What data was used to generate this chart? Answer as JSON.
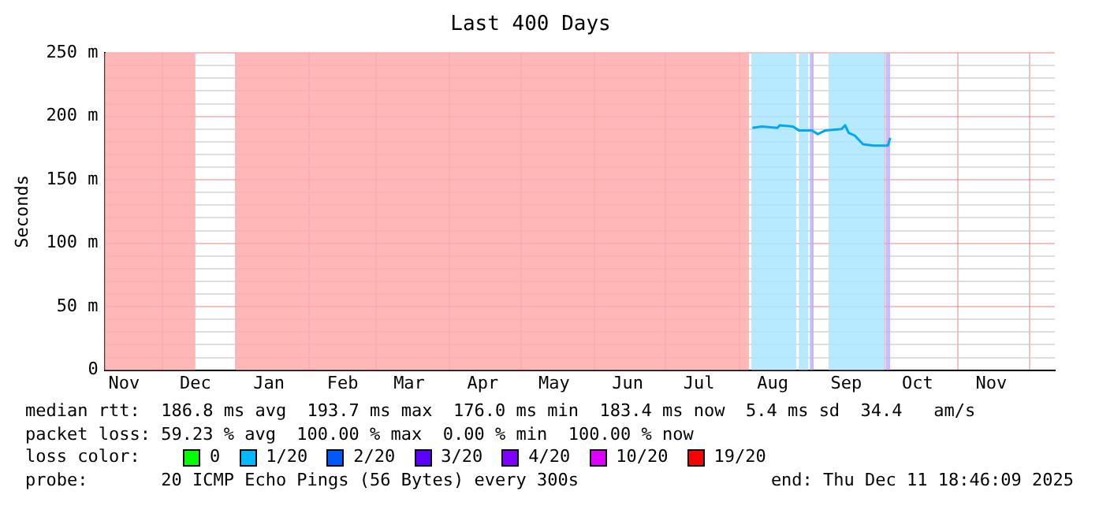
{
  "chart_data": {
    "type": "line",
    "title": "Last 400 Days",
    "ylabel": "Seconds",
    "x": [
      "2025-08-06T12:00",
      "2025-08-10T12:00",
      "2025-08-17",
      "2025-08-18",
      "2025-08-23T12:00",
      "2025-08-26",
      "2025-08-31T12:00",
      "2025-09-03",
      "2025-09-06T06:00",
      "2025-09-13",
      "2025-09-14T12:00",
      "2025-09-16",
      "2025-09-18T12:00",
      "2025-09-22",
      "2025-09-26T12:00",
      "2025-10-02T12:00",
      "2025-10-03T12:00"
    ],
    "series": [
      {
        "color": "#00a8f0",
        "values": [
          191,
          192,
          191,
          193,
          192,
          189,
          189,
          186,
          189,
          190,
          193,
          187,
          185,
          178,
          177,
          177,
          183
        ]
      },
      {
        "name": "0",
        "color": "#00ff00",
        "values": [
          null,
          null,
          null,
          null,
          null,
          null,
          null,
          null,
          null,
          null,
          null,
          null,
          null,
          null,
          null,
          null,
          null
        ]
      },
      {
        "name": "1/20",
        "color": "#00b8ff",
        "values": [
          null,
          null,
          null,
          null,
          null,
          null,
          null,
          null,
          null,
          null,
          null,
          null,
          null,
          null,
          null,
          null,
          null
        ]
      },
      {
        "name": "2/20",
        "color": "#0059ff",
        "values": [
          null,
          null,
          null,
          null,
          null,
          null,
          null,
          null,
          null,
          null,
          null,
          null,
          null,
          null,
          null,
          null,
          null
        ]
      },
      {
        "name": "3/20",
        "color": "#5e00ff",
        "values": [
          null,
          null,
          null,
          null,
          null,
          null,
          null,
          null,
          null,
          null,
          null,
          null,
          null,
          null,
          null,
          null,
          null
        ]
      },
      {
        "name": "4/20",
        "color": "#7e00ff",
        "values": [
          null,
          null,
          null,
          null,
          null,
          null,
          null,
          null,
          null,
          null,
          null,
          null,
          null,
          null,
          null,
          null,
          null
        ]
      },
      {
        "name": "10/20",
        "color": "#dd00ff",
        "values": [
          null,
          null,
          null,
          null,
          null,
          null,
          null,
          null,
          null,
          null,
          null,
          null,
          null,
          null,
          null,
          null,
          null
        ]
      },
      {
        "name": "19/20",
        "color": "#ff0000",
        "values": [
          null,
          null,
          null,
          null,
          null,
          null,
          null,
          null,
          null,
          null,
          null,
          null,
          null,
          null,
          null,
          null,
          null
        ]
      }
    ],
    "legend": "bottom",
    "legend_title": "loss color:",
    "xlim": [
      "2024-11-06T18:46",
      "2025-12-11T18:46"
    ],
    "xticks": [
      {
        "value": "2024-11-15",
        "label": "Nov"
      },
      {
        "value": "2024-12-01",
        "label": null
      },
      {
        "value": "2024-12-15",
        "label": "Dec"
      },
      {
        "value": "2025-01-01",
        "label": null
      },
      {
        "value": "2025-01-15",
        "label": "Jan"
      },
      {
        "value": "2025-02-01",
        "label": null
      },
      {
        "value": "2025-02-15",
        "label": "Feb"
      },
      {
        "value": "2025-03-01",
        "label": null
      },
      {
        "value": "2025-03-15",
        "label": "Mar"
      },
      {
        "value": "2025-04-01",
        "label": null
      },
      {
        "value": "2025-04-15",
        "label": "Apr"
      },
      {
        "value": "2025-05-01",
        "label": null
      },
      {
        "value": "2025-05-15",
        "label": "May"
      },
      {
        "value": "2025-06-01",
        "label": null
      },
      {
        "value": "2025-06-15",
        "label": "Jun"
      },
      {
        "value": "2025-07-01",
        "label": null
      },
      {
        "value": "2025-07-15",
        "label": "Jul"
      },
      {
        "value": "2025-08-01",
        "label": null
      },
      {
        "value": "2025-08-15",
        "label": "Aug"
      },
      {
        "value": "2025-09-01",
        "label": null
      },
      {
        "value": "2025-09-15",
        "label": "Sep"
      },
      {
        "value": "2025-10-01",
        "label": null
      },
      {
        "value": "2025-10-15",
        "label": "Oct"
      },
      {
        "value": "2025-11-01",
        "label": null
      },
      {
        "value": "2025-11-15",
        "label": "Nov"
      },
      {
        "value": "2025-12-01",
        "label": null
      }
    ],
    "ylim": [
      0,
      250
    ],
    "yticks": [
      {
        "value": 0,
        "label": "0"
      },
      {
        "value": 10,
        "label": null
      },
      {
        "value": 20,
        "label": null
      },
      {
        "value": 30,
        "label": null
      },
      {
        "value": 40,
        "label": null
      },
      {
        "value": 50,
        "label": "50 m"
      },
      {
        "value": 60,
        "label": null
      },
      {
        "value": 70,
        "label": null
      },
      {
        "value": 80,
        "label": null
      },
      {
        "value": 90,
        "label": null
      },
      {
        "value": 100,
        "label": "100 m"
      },
      {
        "value": 110,
        "label": null
      },
      {
        "value": 120,
        "label": null
      },
      {
        "value": 130,
        "label": null
      },
      {
        "value": 140,
        "label": null
      },
      {
        "value": 150,
        "label": "150 m"
      },
      {
        "value": 160,
        "label": null
      },
      {
        "value": 170,
        "label": null
      },
      {
        "value": 180,
        "label": null
      },
      {
        "value": 190,
        "label": null
      },
      {
        "value": 200,
        "label": "200 m"
      },
      {
        "value": 210,
        "label": null
      },
      {
        "value": 220,
        "label": null
      },
      {
        "value": 230,
        "label": null
      },
      {
        "value": 240,
        "label": null
      },
      {
        "value": 250,
        "label": "250 m"
      }
    ],
    "grid": true,
    "bands": [
      {
        "axis": "x",
        "from": "2024-11-06T18:46",
        "to": "2024-12-15",
        "color": "#ffaaaa"
      },
      {
        "axis": "x",
        "from": "2025-01-01",
        "to": "2025-08-05",
        "color": "#ffaaaa"
      },
      {
        "axis": "x",
        "from": "2025-08-06",
        "to": "2025-08-25",
        "color": "#aae6ff"
      },
      {
        "axis": "x",
        "from": "2025-08-26",
        "to": "2025-08-30",
        "color": "#aae6ff"
      },
      {
        "axis": "x",
        "from": "2025-08-30T16:00",
        "to": "2025-09-01T04:00",
        "color": "#c0b0ff"
      },
      {
        "axis": "x",
        "from": "2025-09-07T12:00",
        "to": "2025-10-01T04:00",
        "color": "#aae6ff"
      },
      {
        "axis": "x",
        "from": "2025-10-01T14:00",
        "to": "2025-10-03T10:00",
        "color": "#c0b0ff"
      }
    ],
    "annotations": [
      "median rtt:  186.8 ms avg  193.7 ms max  176.0 ms min  183.4 ms now  5.4 ms sd  34.4   am/s",
      "packet loss: 59.23 % avg  100.00 % max  0.00 % min  100.00 % now",
      "probe:       20 ICMP Echo Pings (56 Bytes) every 300s",
      "end: Thu Dec 11 18:46:09 2025"
    ]
  }
}
